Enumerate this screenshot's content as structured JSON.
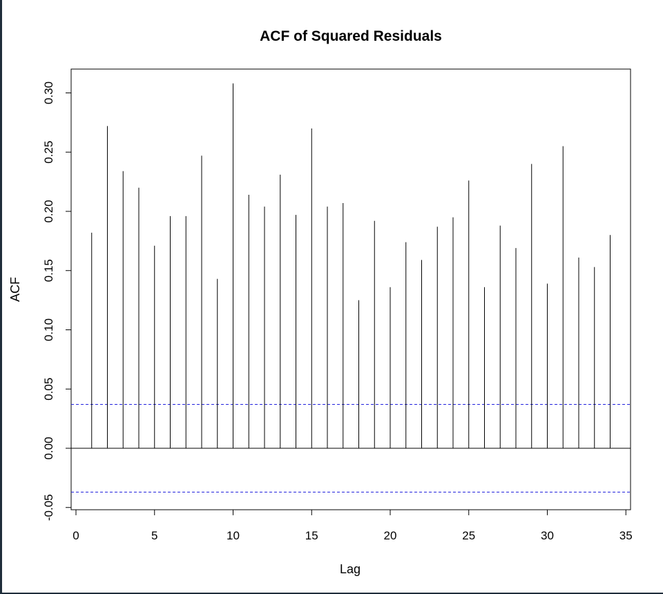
{
  "chart_data": {
    "type": "bar",
    "subtype": "acf",
    "title": "ACF of Squared Residuals",
    "xlabel": "Lag",
    "ylabel": "ACF",
    "xlim": [
      0,
      35
    ],
    "ylim": [
      -0.05,
      0.3
    ],
    "xticks": [
      "0",
      "5",
      "10",
      "15",
      "20",
      "25",
      "30",
      "35"
    ],
    "yticks": [
      "-0.05",
      "0.00",
      "0.05",
      "0.10",
      "0.15",
      "0.20",
      "0.25",
      "0.30"
    ],
    "lags": [
      1,
      2,
      3,
      4,
      5,
      6,
      7,
      8,
      9,
      10,
      11,
      12,
      13,
      14,
      15,
      16,
      17,
      18,
      19,
      20,
      21,
      22,
      23,
      24,
      25,
      26,
      27,
      28,
      29,
      30,
      31,
      32,
      33,
      34
    ],
    "values": [
      0.182,
      0.272,
      0.234,
      0.22,
      0.171,
      0.196,
      0.196,
      0.247,
      0.143,
      0.308,
      0.214,
      0.204,
      0.231,
      0.197,
      0.27,
      0.204,
      0.207,
      0.125,
      0.192,
      0.136,
      0.174,
      0.159,
      0.187,
      0.195,
      0.226,
      0.136,
      0.188,
      0.169,
      0.24,
      0.139,
      0.255,
      0.161,
      0.153,
      0.18
    ],
    "confidence_bound": 0.037,
    "colors": {
      "stem": "#000000",
      "confidence_line": "#2222dd",
      "zero_line": "#000000"
    },
    "grid": false,
    "legend": "none"
  }
}
